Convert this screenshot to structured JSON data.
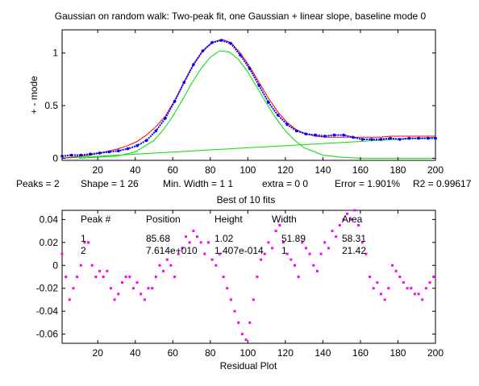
{
  "figure": {
    "title": "Gaussian on random walk: Two-peak fit, one Gaussian + linear slope, baseline mode 0",
    "fit_summary": {
      "peaks": "Peaks = 2",
      "shape": "Shape = 1  26",
      "min_width": "Min. Width = 1  1",
      "extra": "extra = 0  0",
      "error": "Error = 1.901%",
      "r2": "R2 = 0.99617"
    },
    "best_of": "Best of 10 fits",
    "residual_title": "Residual Plot",
    "table": {
      "headers": [
        "Peak #",
        "Position",
        "Height",
        "Width",
        "Area"
      ],
      "rows": [
        [
          "1",
          "85.68",
          "1.02",
          "51.89",
          "58.31"
        ],
        [
          "2",
          "7.614e+010",
          "1.407e-014",
          "1",
          "21.42"
        ]
      ]
    }
  },
  "chart_data": [
    {
      "type": "line",
      "title": "Gaussian on random walk: Two-peak fit, one Gaussian + linear slope, baseline mode 0",
      "xlabel": "",
      "ylabel": "+ - mode",
      "xlim": [
        1,
        200
      ],
      "ylim": [
        -0.02,
        1.22
      ],
      "xticks": [
        20,
        40,
        60,
        80,
        100,
        120,
        140,
        160,
        180,
        200
      ],
      "yticks": [
        0,
        0.5,
        1
      ],
      "ytick_labels": [
        "0",
        "0.5",
        "1"
      ],
      "grid": false,
      "colors": {
        "data": "#0000ff",
        "fit": "#ff0000",
        "components": "#00dd00"
      },
      "series": [
        {
          "x": [
            1,
            6,
            11,
            16,
            21,
            26,
            31,
            36,
            41,
            46,
            51,
            56,
            61,
            66,
            71,
            76,
            81,
            86,
            91,
            96,
            101,
            106,
            111,
            116,
            121,
            126,
            131,
            136,
            141,
            146,
            151,
            156,
            161,
            166,
            171,
            176,
            181,
            186,
            191,
            196,
            200
          ],
          "values": [
            0.02,
            0.03,
            0.03,
            0.04,
            0.05,
            0.06,
            0.07,
            0.09,
            0.12,
            0.17,
            0.26,
            0.38,
            0.54,
            0.72,
            0.89,
            1.02,
            1.1,
            1.12,
            1.09,
            0.98,
            0.85,
            0.69,
            0.53,
            0.41,
            0.32,
            0.26,
            0.23,
            0.22,
            0.21,
            0.22,
            0.22,
            0.2,
            0.18,
            0.18,
            0.18,
            0.19,
            0.18,
            0.19,
            0.19,
            0.19,
            0.19
          ]
        },
        {
          "x": [
            1,
            6,
            11,
            16,
            21,
            26,
            31,
            36,
            41,
            46,
            51,
            56,
            61,
            66,
            71,
            76,
            81,
            86,
            91,
            96,
            101,
            106,
            111,
            116,
            121,
            126,
            131,
            136,
            141,
            146,
            151,
            156,
            161,
            166,
            171,
            176,
            181,
            186,
            191,
            196,
            200
          ],
          "values": [
            0.0,
            0.01,
            0.02,
            0.03,
            0.05,
            0.07,
            0.09,
            0.12,
            0.16,
            0.22,
            0.3,
            0.4,
            0.55,
            0.72,
            0.89,
            1.02,
            1.1,
            1.13,
            1.1,
            1.0,
            0.87,
            0.72,
            0.57,
            0.44,
            0.34,
            0.27,
            0.23,
            0.21,
            0.2,
            0.2,
            0.2,
            0.2,
            0.2,
            0.2,
            0.2,
            0.21,
            0.21,
            0.21,
            0.21,
            0.21,
            0.21
          ]
        },
        {
          "x": [
            10,
            20,
            30,
            40,
            50,
            55,
            60,
            65,
            70,
            75,
            80,
            85,
            90,
            95,
            100,
            105,
            110,
            115,
            120,
            125,
            130,
            140,
            150,
            160,
            180,
            200
          ],
          "values": [
            0.0,
            0.01,
            0.02,
            0.06,
            0.17,
            0.27,
            0.4,
            0.55,
            0.71,
            0.85,
            0.96,
            1.02,
            1.01,
            0.94,
            0.82,
            0.67,
            0.52,
            0.38,
            0.26,
            0.17,
            0.1,
            0.03,
            0.01,
            0.0,
            0.0,
            0.0
          ]
        },
        {
          "x": [
            1,
            200
          ],
          "values": [
            0.0,
            0.2
          ]
        }
      ]
    },
    {
      "type": "scatter",
      "title": "",
      "xlabel": "Residual Plot",
      "ylabel": "",
      "xlim": [
        1,
        200
      ],
      "ylim": [
        -0.068,
        0.048
      ],
      "xticks": [
        20,
        40,
        60,
        80,
        100,
        120,
        140,
        160,
        180,
        200
      ],
      "yticks": [
        -0.06,
        -0.04,
        -0.02,
        0,
        0.02,
        0.04
      ],
      "ytick_labels": [
        "-0.06",
        "-0.04",
        "-0.02",
        "0",
        "0.02",
        "0.04"
      ],
      "grid": false,
      "colors": {
        "points": "#ff00ff"
      },
      "series": [
        {
          "x": [
            1,
            3,
            5,
            7,
            9,
            11,
            13,
            15,
            17,
            19,
            21,
            23,
            25,
            27,
            29,
            31,
            33,
            35,
            37,
            39,
            41,
            43,
            45,
            47,
            49,
            51,
            53,
            55,
            57,
            59,
            61,
            63,
            65,
            67,
            69,
            71,
            73,
            75,
            77,
            79,
            81,
            83,
            85,
            87,
            89,
            91,
            93,
            95,
            97,
            99,
            101,
            103,
            105,
            107,
            109,
            111,
            113,
            115,
            117,
            119,
            121,
            123,
            125,
            127,
            129,
            131,
            133,
            135,
            137,
            139,
            141,
            143,
            145,
            147,
            149,
            151,
            153,
            155,
            157,
            159,
            161,
            163,
            165,
            167,
            169,
            171,
            173,
            175,
            177,
            179,
            181,
            183,
            185,
            187,
            189,
            191,
            193,
            195,
            197,
            199
          ],
          "values": [
            0.01,
            -0.01,
            -0.03,
            -0.02,
            -0.01,
            0.0,
            0.02,
            0.02,
            0.0,
            -0.01,
            -0.005,
            -0.01,
            -0.005,
            -0.02,
            -0.03,
            -0.025,
            -0.015,
            -0.01,
            -0.01,
            -0.02,
            -0.015,
            -0.025,
            -0.03,
            -0.02,
            -0.02,
            -0.01,
            0.0,
            -0.005,
            0.005,
            0.0,
            -0.01,
            0.01,
            0.015,
            0.025,
            0.02,
            0.03,
            0.025,
            0.02,
            0.01,
            0.02,
            0.005,
            0.0,
            0.01,
            -0.01,
            -0.02,
            -0.03,
            -0.04,
            -0.05,
            -0.06,
            -0.065,
            -0.05,
            -0.03,
            -0.01,
            0.005,
            0.01,
            0.02,
            0.015,
            0.03,
            0.035,
            0.02,
            0.01,
            0.005,
            0.0,
            -0.01,
            0.02,
            0.015,
            0.01,
            0.0,
            -0.005,
            0.01,
            0.02,
            0.015,
            0.03,
            0.025,
            0.035,
            0.04,
            0.045,
            0.04,
            0.048,
            0.035,
            0.02,
            0.01,
            -0.01,
            -0.02,
            -0.015,
            -0.025,
            -0.03,
            -0.02,
            0.0,
            -0.005,
            -0.01,
            -0.015,
            -0.02,
            -0.02,
            -0.025,
            -0.025,
            -0.03,
            -0.02,
            -0.015,
            -0.01
          ]
        }
      ]
    }
  ]
}
